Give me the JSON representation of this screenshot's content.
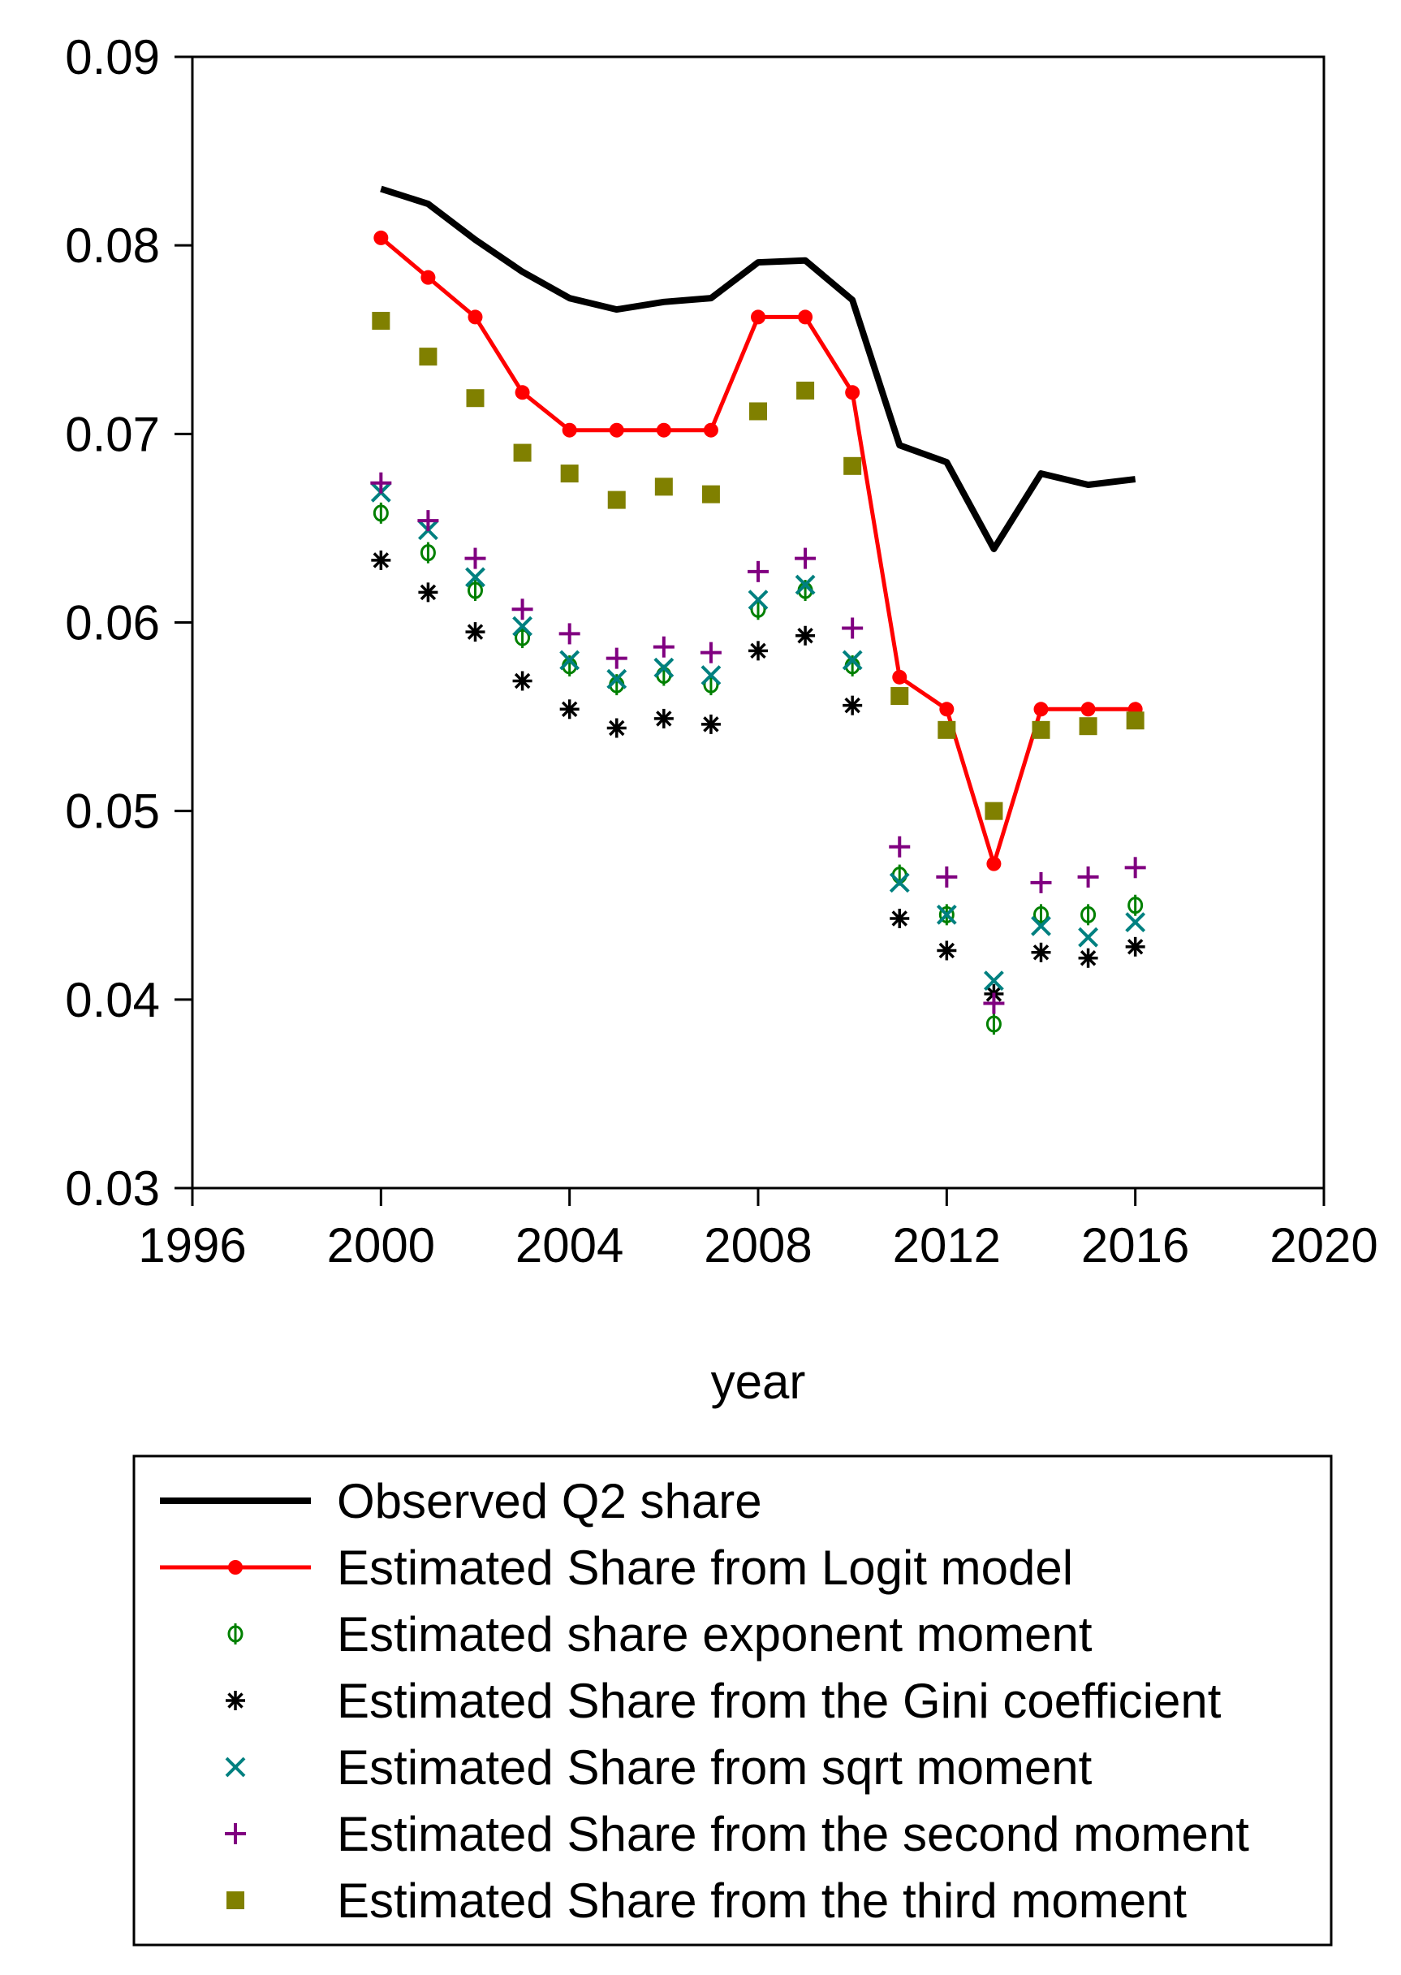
{
  "chart_data": {
    "type": "line",
    "title": "",
    "xlabel": "year",
    "ylabel": "",
    "xlim": [
      1996,
      2020
    ],
    "ylim": [
      0.03,
      0.09
    ],
    "x_ticks": [
      1996,
      2000,
      2004,
      2008,
      2012,
      2016,
      2020
    ],
    "x_tick_labels": [
      "1996",
      "2000",
      "2004",
      "2008",
      "2012",
      "2016",
      "2020"
    ],
    "y_ticks": [
      0.03,
      0.04,
      0.05,
      0.06,
      0.07,
      0.08,
      0.09
    ],
    "y_tick_labels": [
      "0.03",
      "0.04",
      "0.05",
      "0.06",
      "0.07",
      "0.08",
      "0.09"
    ],
    "grid": false,
    "legend_position": "bottom",
    "x": [
      2000,
      2001,
      2002,
      2003,
      2004,
      2005,
      2006,
      2007,
      2008,
      2009,
      2010,
      2011,
      2012,
      2013,
      2014,
      2015,
      2016
    ],
    "series": [
      {
        "name": "Observed Q2 share",
        "style": "line",
        "color": "#000000",
        "values": [
          0.083,
          0.0822,
          0.0803,
          0.0786,
          0.0772,
          0.0766,
          0.077,
          0.0772,
          0.0791,
          0.0792,
          0.0771,
          0.0694,
          0.0685,
          0.0639,
          0.0679,
          0.0673,
          0.0676
        ]
      },
      {
        "name": "Estimated Share from Logit model",
        "style": "line-dot",
        "color": "#ff0000",
        "values": [
          0.0804,
          0.0783,
          0.0762,
          0.0722,
          0.0702,
          0.0702,
          0.0702,
          0.0702,
          0.0762,
          0.0762,
          0.0722,
          0.0571,
          0.0554,
          0.0472,
          0.0554,
          0.0554,
          0.0554
        ]
      },
      {
        "name": "Estimated share exponent moment",
        "style": "phi",
        "color": "#008000",
        "values": [
          0.0658,
          0.0637,
          0.0617,
          0.0592,
          0.0577,
          0.0567,
          0.0572,
          0.0567,
          0.0607,
          0.0617,
          0.0577,
          0.0466,
          0.0445,
          0.0387,
          0.0445,
          0.0445,
          0.045
        ]
      },
      {
        "name": "Estimated Share from the Gini coefficient",
        "style": "star",
        "color": "#000000",
        "values": [
          0.0633,
          0.0616,
          0.0595,
          0.0569,
          0.0554,
          0.0544,
          0.0549,
          0.0546,
          0.0585,
          0.0593,
          0.0556,
          0.0443,
          0.0426,
          0.0403,
          0.0425,
          0.0422,
          0.0428
        ]
      },
      {
        "name": "Estimated Share from sqrt moment",
        "style": "x",
        "color": "#008080",
        "values": [
          0.0669,
          0.0649,
          0.0624,
          0.0598,
          0.058,
          0.057,
          0.0576,
          0.0572,
          0.0612,
          0.062,
          0.058,
          0.0462,
          0.0445,
          0.041,
          0.0439,
          0.0433,
          0.0441
        ]
      },
      {
        "name": "Estimated Share from the second moment",
        "style": "plus",
        "color": "#800080",
        "values": [
          0.0674,
          0.0654,
          0.0634,
          0.0607,
          0.0594,
          0.0581,
          0.0587,
          0.0584,
          0.0627,
          0.0634,
          0.0597,
          0.0481,
          0.0465,
          0.0398,
          0.0462,
          0.0465,
          0.047
        ]
      },
      {
        "name": "Estimated Share from the third moment",
        "style": "square",
        "color": "#808000",
        "values": [
          0.076,
          0.0741,
          0.0719,
          0.069,
          0.0679,
          0.0665,
          0.0672,
          0.0668,
          0.0712,
          0.0723,
          0.0683,
          0.0561,
          0.0543,
          0.05,
          0.0543,
          0.0545,
          0.0548
        ]
      }
    ]
  }
}
